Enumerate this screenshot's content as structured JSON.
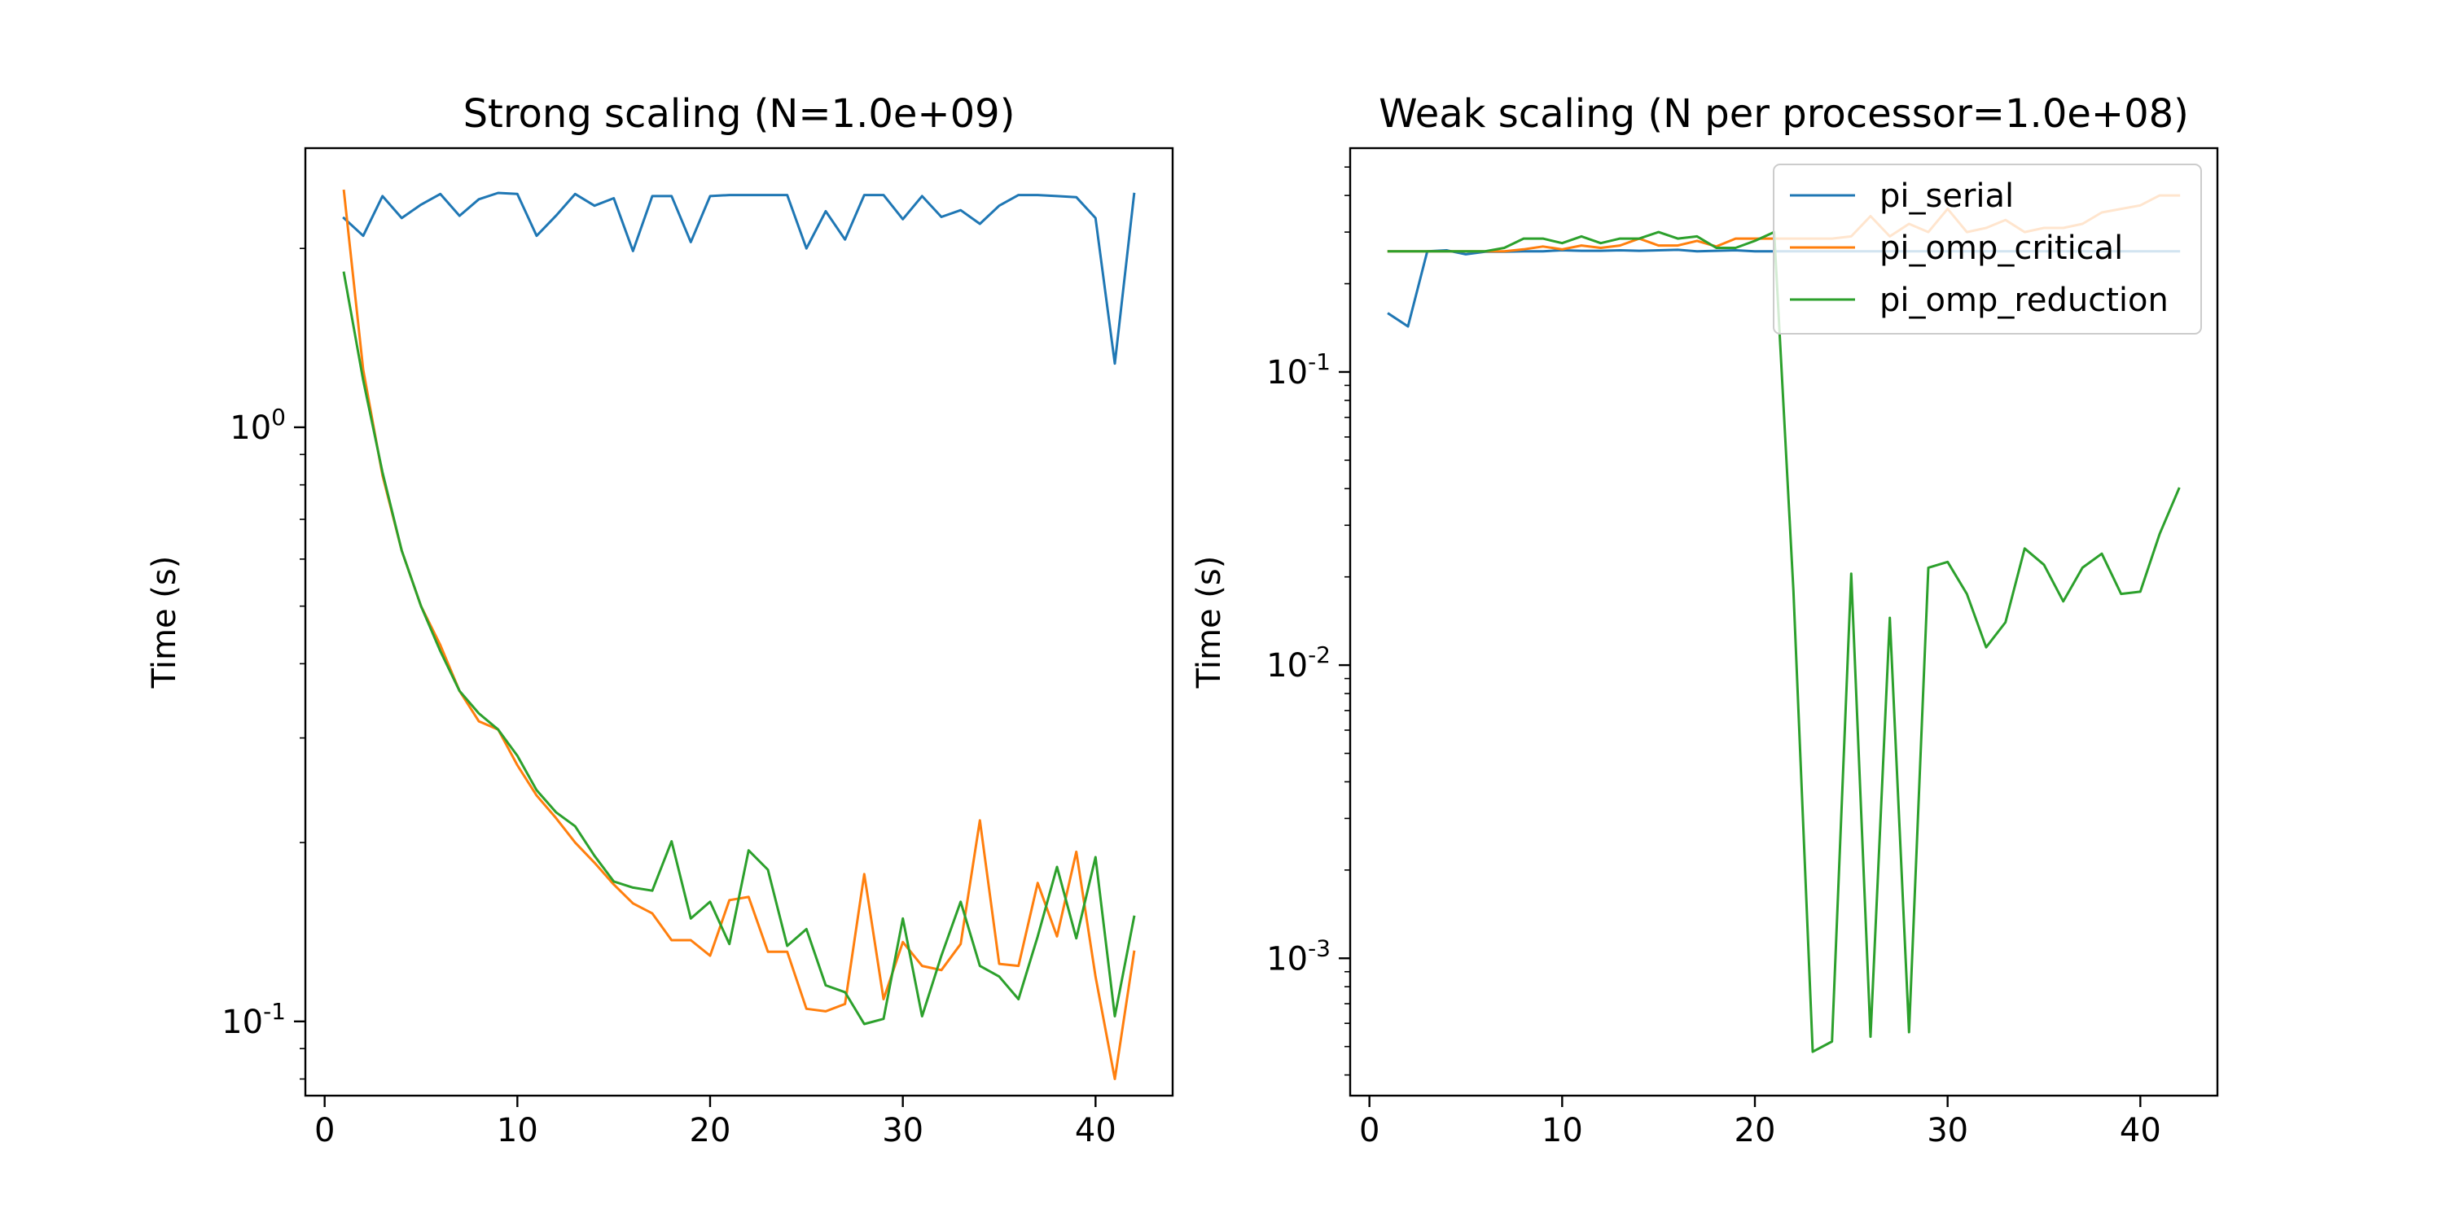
{
  "chart_data": [
    {
      "type": "line",
      "title": "Strong scaling (N=1.0e+09)",
      "xlabel": "",
      "ylabel": "Time (s)",
      "xlim": [
        -1,
        44
      ],
      "ylim": [
        0.075,
        2.95
      ],
      "yscale": "log",
      "xticks": [
        0,
        10,
        20,
        30,
        40
      ],
      "yticks": [
        {
          "value": 1,
          "label": "10^0"
        },
        {
          "value": 0.1,
          "label": "10^-1"
        }
      ],
      "grid": false,
      "x": [
        1,
        2,
        3,
        4,
        5,
        6,
        7,
        8,
        9,
        10,
        11,
        12,
        13,
        14,
        15,
        16,
        17,
        18,
        19,
        20,
        21,
        22,
        23,
        24,
        25,
        26,
        27,
        28,
        29,
        30,
        31,
        32,
        33,
        34,
        35,
        36,
        37,
        38,
        39,
        40,
        41,
        42
      ],
      "series": [
        {
          "name": "pi_serial",
          "color": "#1f77b4",
          "values": [
            2.25,
            2.1,
            2.45,
            2.25,
            2.37,
            2.47,
            2.27,
            2.42,
            2.48,
            2.47,
            2.1,
            2.27,
            2.47,
            2.36,
            2.43,
            1.98,
            2.45,
            2.45,
            2.05,
            2.45,
            2.46,
            2.46,
            2.46,
            2.46,
            2.0,
            2.31,
            2.07,
            2.46,
            2.46,
            2.24,
            2.45,
            2.26,
            2.32,
            2.2,
            2.36,
            2.46,
            2.46,
            2.45,
            2.44,
            2.25,
            1.28,
            2.47
          ]
        },
        {
          "name": "pi_omp_critical",
          "color": "#ff7f0e",
          "values": [
            2.5,
            1.25,
            0.83,
            0.62,
            0.5,
            0.43,
            0.36,
            0.32,
            0.31,
            0.27,
            0.24,
            0.22,
            0.2,
            0.185,
            0.17,
            0.158,
            0.152,
            0.137,
            0.137,
            0.129,
            0.16,
            0.162,
            0.131,
            0.131,
            0.105,
            0.104,
            0.107,
            0.177,
            0.109,
            0.136,
            0.124,
            0.122,
            0.135,
            0.218,
            0.125,
            0.124,
            0.171,
            0.139,
            0.193,
            0.119,
            0.08,
            0.131
          ]
        },
        {
          "name": "pi_omp_reduction",
          "color": "#2ca02c",
          "values": [
            1.82,
            1.2,
            0.84,
            0.62,
            0.5,
            0.42,
            0.36,
            0.33,
            0.31,
            0.28,
            0.245,
            0.225,
            0.213,
            0.19,
            0.172,
            0.168,
            0.166,
            0.201,
            0.149,
            0.159,
            0.135,
            0.194,
            0.18,
            0.134,
            0.143,
            0.115,
            0.112,
            0.099,
            0.101,
            0.149,
            0.102,
            0.129,
            0.159,
            0.124,
            0.119,
            0.109,
            0.139,
            0.182,
            0.138,
            0.189,
            0.102,
            0.15
          ]
        }
      ]
    },
    {
      "type": "line",
      "title": "Weak scaling (N per processor=1.0e+08)",
      "xlabel": "",
      "ylabel": "Time (s)",
      "xlim": [
        -1,
        44
      ],
      "ylim": [
        0.00034,
        0.58
      ],
      "yscale": "log",
      "xticks": [
        0,
        10,
        20,
        30,
        40
      ],
      "yticks": [
        {
          "value": 0.1,
          "label": "10^-1"
        },
        {
          "value": 0.01,
          "label": "10^-2"
        },
        {
          "value": 0.001,
          "label": "10^-3"
        }
      ],
      "grid": false,
      "legend": {
        "placement": "upper right",
        "entries": [
          "pi_serial",
          "pi_omp_critical",
          "pi_omp_reduction"
        ]
      },
      "x": [
        1,
        2,
        3,
        4,
        5,
        6,
        7,
        8,
        9,
        10,
        11,
        12,
        13,
        14,
        15,
        16,
        17,
        18,
        19,
        20,
        21,
        22,
        23,
        24,
        25,
        26,
        27,
        28,
        29,
        30,
        31,
        32,
        33,
        34,
        35,
        36,
        37,
        38,
        39,
        40,
        41,
        42
      ],
      "series": [
        {
          "name": "pi_serial",
          "color": "#1f77b4",
          "values": [
            0.158,
            0.143,
            0.258,
            0.26,
            0.252,
            0.257,
            0.257,
            0.258,
            0.258,
            0.26,
            0.259,
            0.259,
            0.26,
            0.259,
            0.26,
            0.261,
            0.258,
            0.259,
            0.26,
            0.258,
            0.258,
            0.258,
            0.258,
            0.258,
            0.258,
            0.258,
            0.258,
            0.258,
            0.258,
            0.258,
            0.258,
            0.258,
            0.258,
            0.258,
            0.258,
            0.258,
            0.258,
            0.258,
            0.258,
            0.258,
            0.258,
            0.258
          ]
        },
        {
          "name": "pi_omp_critical",
          "color": "#ff7f0e",
          "values": [
            0.258,
            0.258,
            0.258,
            0.258,
            0.258,
            0.258,
            0.258,
            0.262,
            0.268,
            0.262,
            0.27,
            0.265,
            0.27,
            0.285,
            0.27,
            0.27,
            0.28,
            0.268,
            0.285,
            0.285,
            0.285,
            0.285,
            0.285,
            0.285,
            0.29,
            0.34,
            0.29,
            0.32,
            0.3,
            0.36,
            0.3,
            0.31,
            0.33,
            0.3,
            0.31,
            0.31,
            0.32,
            0.35,
            0.36,
            0.37,
            0.4,
            0.4
          ]
        },
        {
          "name": "pi_omp_reduction",
          "color": "#2ca02c",
          "values": [
            0.258,
            0.258,
            0.258,
            0.258,
            0.258,
            0.258,
            0.265,
            0.285,
            0.285,
            0.275,
            0.29,
            0.275,
            0.285,
            0.285,
            0.3,
            0.285,
            0.29,
            0.265,
            0.265,
            0.28,
            0.3,
            0.018,
            0.00048,
            0.00052,
            0.0205,
            0.00054,
            0.0145,
            0.00056,
            0.0215,
            0.0225,
            0.0175,
            0.0115,
            0.014,
            0.025,
            0.022,
            0.0165,
            0.0215,
            0.024,
            0.0175,
            0.0178,
            0.028,
            0.04
          ]
        }
      ]
    }
  ]
}
